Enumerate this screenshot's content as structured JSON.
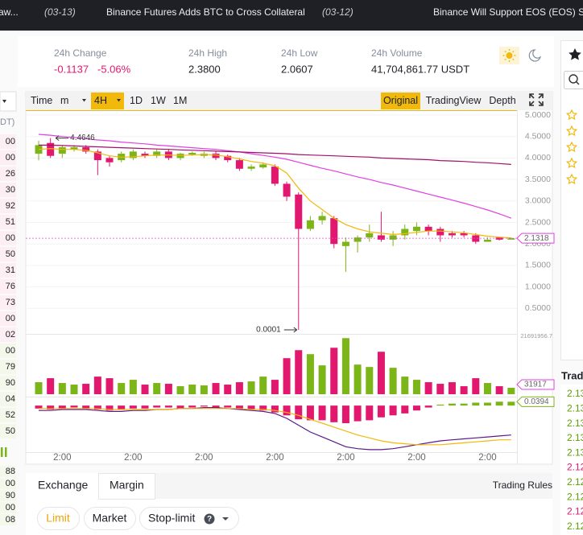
{
  "ticker": [
    "aw...",
    "(03-13)",
    "Binance Futures Adds BTC to Cross Collateral",
    "(03-12)",
    "Binance Will Support EOS (EOS) Sta"
  ],
  "stats": [
    {
      "label": "24h Change",
      "value": "-0.1137",
      "extra": "-5.06%"
    },
    {
      "label": "24h High",
      "value": "2.3800"
    },
    {
      "label": "24h Low",
      "value": "2.0607"
    },
    {
      "label": "24h Volume",
      "value": "41,704,861.77 USDT"
    }
  ],
  "toolbar": {
    "intervals": [
      "Time",
      "m",
      "4H",
      "1D",
      "1W",
      "1M"
    ],
    "active_interval": "4H",
    "views": [
      "Original",
      "TradingView",
      "Depth"
    ],
    "active_view": "Original"
  },
  "order_book_partial": {
    "header": "DT)",
    "rows": [
      "00",
      "00",
      "26",
      "30",
      "92",
      "51",
      "00",
      "50",
      "31",
      "76",
      "73",
      "00",
      "02",
      "00",
      "79",
      "90",
      "04",
      "52",
      "50"
    ],
    "rows_lower": [
      "88",
      "00",
      "90",
      "00",
      "08"
    ]
  },
  "chart_data": {
    "type": "candlestick",
    "time_labels": [
      "2:00",
      "2:00",
      "2:00",
      "2:00",
      "2:00",
      "2:00",
      "2:00"
    ],
    "open": [
      4.1,
      4.35,
      4.1,
      4.2,
      4.25,
      4.15,
      4.0,
      3.95,
      4.0,
      4.1,
      4.05,
      4.15,
      4.0,
      4.08,
      4.05,
      4.1,
      4.05,
      3.95,
      3.75,
      3.78,
      3.8,
      3.4,
      3.15,
      2.35,
      2.55,
      2.6,
      1.95,
      2.05,
      2.15,
      2.2,
      2.1,
      2.2,
      2.3,
      2.4,
      2.35,
      2.25,
      2.25,
      2.2,
      2.05,
      2.15,
      2.1
    ],
    "high": [
      4.4,
      4.4646,
      4.3,
      4.3,
      4.3,
      4.2,
      4.05,
      4.15,
      4.2,
      4.15,
      4.2,
      4.2,
      4.12,
      4.15,
      4.15,
      4.15,
      4.08,
      4.0,
      3.85,
      3.9,
      3.85,
      3.45,
      3.2,
      2.65,
      2.75,
      2.65,
      2.15,
      2.2,
      2.45,
      2.75,
      2.3,
      2.45,
      2.5,
      2.45,
      2.4,
      2.3,
      2.3,
      2.25,
      2.15,
      2.15,
      2.15
    ],
    "low": [
      3.95,
      4.0,
      4.0,
      4.15,
      4.1,
      3.6,
      3.8,
      3.9,
      3.95,
      4.0,
      4.0,
      3.95,
      3.95,
      4.05,
      4.0,
      3.95,
      3.9,
      3.7,
      3.7,
      3.75,
      3.35,
      3.0,
      0.0001,
      2.3,
      2.45,
      1.9,
      1.35,
      1.8,
      2.05,
      2.05,
      1.95,
      2.1,
      2.2,
      2.2,
      2.05,
      2.15,
      2.15,
      2.0,
      2.05,
      2.08,
      2.1
    ],
    "close": [
      4.3,
      4.05,
      4.25,
      4.25,
      4.15,
      3.95,
      3.9,
      4.1,
      4.15,
      4.05,
      4.15,
      4.0,
      4.1,
      4.12,
      4.1,
      4.0,
      3.95,
      3.75,
      3.8,
      3.85,
      3.4,
      3.1,
      2.35,
      2.55,
      2.65,
      2.0,
      2.05,
      2.15,
      2.25,
      2.1,
      2.2,
      2.35,
      2.4,
      2.3,
      2.2,
      2.2,
      2.2,
      2.05,
      2.1,
      2.1,
      2.13
    ],
    "ma_lines": [
      {
        "color": "#f0b90b",
        "values": [
          4.2,
          4.22,
          4.2,
          4.2,
          4.18,
          4.12,
          4.05,
          4.02,
          4.03,
          4.05,
          4.07,
          4.07,
          4.06,
          4.07,
          4.08,
          4.07,
          4.03,
          3.98,
          3.92,
          3.88,
          3.82,
          3.65,
          3.3,
          3.0,
          2.8,
          2.6,
          2.45,
          2.35,
          2.28,
          2.25,
          2.22,
          2.24,
          2.27,
          2.3,
          2.3,
          2.28,
          2.26,
          2.22,
          2.18,
          2.16,
          2.14
        ]
      },
      {
        "color": "#e040e0",
        "values": [
          4.55,
          4.53,
          4.5,
          4.48,
          4.45,
          4.42,
          4.4,
          4.37,
          4.35,
          4.33,
          4.3,
          4.28,
          4.26,
          4.24,
          4.22,
          4.2,
          4.17,
          4.14,
          4.1,
          4.06,
          4.02,
          3.97,
          3.9,
          3.83,
          3.76,
          3.7,
          3.63,
          3.56,
          3.5,
          3.43,
          3.37,
          3.3,
          3.23,
          3.16,
          3.09,
          3.02,
          2.95,
          2.87,
          2.79,
          2.7,
          2.6
        ]
      },
      {
        "color": "#a0106a",
        "values": [
          4.3,
          4.3,
          4.29,
          4.28,
          4.27,
          4.26,
          4.25,
          4.24,
          4.23,
          4.22,
          4.21,
          4.2,
          4.19,
          4.18,
          4.17,
          4.16,
          4.15,
          4.14,
          4.13,
          4.12,
          4.11,
          4.1,
          4.08,
          4.07,
          4.06,
          4.05,
          4.04,
          4.03,
          4.02,
          4.0,
          3.99,
          3.98,
          3.97,
          3.96,
          3.94,
          3.93,
          3.92,
          3.9,
          3.89,
          3.87,
          3.85
        ]
      }
    ],
    "up_color": "#7cb518",
    "down_color": "#e2186f",
    "ylim": [
      0,
      5
    ],
    "yticks": [
      {
        "value": 5,
        "label": "5.0000"
      },
      {
        "value": 4.5,
        "label": "4.5000"
      },
      {
        "value": 4,
        "label": "4.0000"
      },
      {
        "value": 3.5,
        "label": "3.5000"
      },
      {
        "value": 3,
        "label": "3.0000"
      },
      {
        "value": 2.5,
        "label": "2.5000"
      },
      {
        "value": 2,
        "label": "2.0000"
      },
      {
        "value": 1.5,
        "label": "1.5000"
      },
      {
        "value": 1,
        "label": "1.0000"
      },
      {
        "value": 0.5,
        "label": "0.5000"
      }
    ],
    "grid": true,
    "annotations": [
      "4.4646",
      "0.0001"
    ],
    "last_price": 2.1318,
    "volume_top": 21691956.7,
    "volume": [
      4500000,
      6000000,
      4200000,
      3600000,
      3900000,
      6600000,
      6000000,
      4200000,
      5400000,
      3600000,
      4200000,
      3900000,
      3000000,
      3600000,
      3300000,
      4200000,
      3600000,
      4500000,
      4800000,
      6600000,
      5400000,
      13500000,
      16500000,
      15000000,
      10800000,
      17400000,
      21000000,
      11100000,
      10200000,
      15900000,
      9900000,
      6600000,
      5400000,
      4500000,
      3900000,
      4500000,
      3000000,
      6000000,
      4200000,
      3000000,
      2400000
    ],
    "volume_tag": "31917",
    "macd_lim": [
      -0.5,
      0.075
    ],
    "macd_hist": [
      -0.03,
      -0.04,
      -0.03,
      -0.02,
      -0.03,
      -0.04,
      -0.05,
      -0.04,
      -0.03,
      -0.03,
      -0.02,
      -0.02,
      -0.03,
      -0.02,
      -0.01,
      -0.02,
      -0.02,
      -0.03,
      -0.04,
      -0.05,
      -0.07,
      -0.1,
      -0.14,
      -0.15,
      -0.15,
      -0.17,
      -0.18,
      -0.16,
      -0.15,
      -0.12,
      -0.1,
      -0.08,
      -0.05,
      -0.02,
      0.01,
      0.02,
      0.02,
      0.03,
      0.03,
      0.04,
      0.0394
    ],
    "macd_lines": [
      {
        "color": "#5b1a8c",
        "values": [
          -0.05,
          -0.05,
          -0.04,
          -0.04,
          -0.04,
          -0.05,
          -0.06,
          -0.06,
          -0.05,
          -0.05,
          -0.04,
          -0.04,
          -0.03,
          -0.03,
          -0.02,
          -0.02,
          -0.03,
          -0.04,
          -0.05,
          -0.06,
          -0.08,
          -0.13,
          -0.2,
          -0.27,
          -0.32,
          -0.37,
          -0.42,
          -0.44,
          -0.45,
          -0.45,
          -0.44,
          -0.42,
          -0.4,
          -0.38,
          -0.36,
          -0.35,
          -0.34,
          -0.33,
          -0.32,
          -0.31,
          -0.3
        ]
      },
      {
        "color": "#f0b90b",
        "values": [
          -0.03,
          -0.03,
          -0.03,
          -0.03,
          -0.03,
          -0.03,
          -0.04,
          -0.04,
          -0.04,
          -0.04,
          -0.04,
          -0.04,
          -0.03,
          -0.03,
          -0.03,
          -0.03,
          -0.03,
          -0.03,
          -0.04,
          -0.04,
          -0.05,
          -0.07,
          -0.1,
          -0.14,
          -0.18,
          -0.22,
          -0.26,
          -0.3,
          -0.33,
          -0.36,
          -0.38,
          -0.39,
          -0.4,
          -0.4,
          -0.4,
          -0.39,
          -0.38,
          -0.37,
          -0.36,
          -0.35,
          -0.35
        ]
      }
    ],
    "macd_tag": 0.0394
  },
  "order_form": {
    "tabs": [
      "Exchange",
      "Margin"
    ],
    "rules_link": "Trading Rules",
    "types": [
      "Limit",
      "Market",
      "Stop-limit"
    ],
    "help": "?"
  },
  "trades": {
    "title": "Trad",
    "prices": [
      {
        "text": "2.13",
        "color": "#5c9e00"
      },
      {
        "text": "2.13",
        "color": "#5c9e00"
      },
      {
        "text": "2.13",
        "color": "#5c9e00"
      },
      {
        "text": "2.13",
        "color": "#5c9e00"
      },
      {
        "text": "2.13",
        "color": "#5c9e00"
      },
      {
        "text": "2.12",
        "color": "#e2186f"
      },
      {
        "text": "2.12",
        "color": "#5c9e00"
      },
      {
        "text": "2.12",
        "color": "#5c9e00"
      },
      {
        "text": "2.12",
        "color": "#e2186f"
      },
      {
        "text": "2.12",
        "color": "#5c9e00"
      }
    ]
  }
}
